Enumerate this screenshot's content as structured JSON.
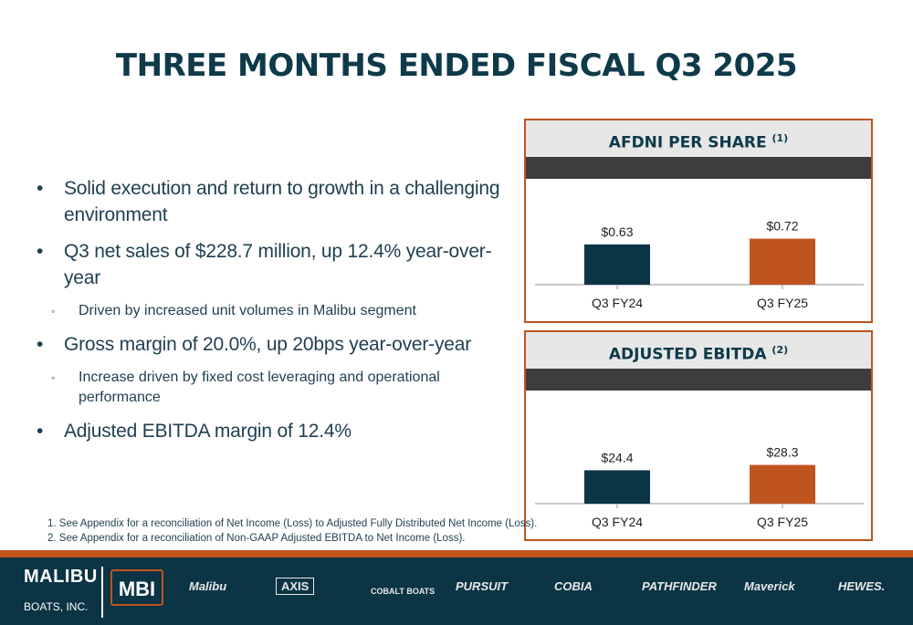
{
  "title": "THREE MONTHS ENDED FISCAL Q3 2025",
  "bullets": [
    {
      "level": 1,
      "text": "Solid execution and return to growth in a challenging environment"
    },
    {
      "level": 1,
      "text": "Q3 net sales of $228.7 million, up 12.4% year-over-year"
    },
    {
      "level": 2,
      "text": "Driven by increased unit volumes in Malibu segment"
    },
    {
      "level": 1,
      "text": "Gross margin of 20.0%, up 20bps year-over-year"
    },
    {
      "level": 2,
      "text": "Increase driven by fixed cost leveraging and operational performance"
    },
    {
      "level": 1,
      "text": "Adjusted EBITDA margin of 12.4%"
    }
  ],
  "footnotes": [
    "1.  See Appendix for a reconciliation of Net Income (Loss) to Adjusted Fully Distributed Net Income (Loss).",
    "2.  See Appendix for a reconciliation of Non-GAAP Adjusted EBITDA to Net Income (Loss)."
  ],
  "chart_data": [
    {
      "type": "bar",
      "title": "AFDNI PER SHARE",
      "title_note": "(1)",
      "categories": [
        "Q3 FY24",
        "Q3 FY25"
      ],
      "values": [
        0.63,
        0.72
      ],
      "labels": [
        "$0.63",
        "$0.72"
      ],
      "colors": [
        "#0b3444",
        "#c0541e"
      ],
      "ylim": [
        0,
        1.6
      ]
    },
    {
      "type": "bar",
      "title": "ADJUSTED EBITDA",
      "title_note": "(2)",
      "categories": [
        "Q3 FY24",
        "Q3 FY25"
      ],
      "values": [
        24.4,
        28.3
      ],
      "labels": [
        "$24.4",
        "$28.3"
      ],
      "colors": [
        "#0b3444",
        "#c0541e"
      ],
      "ylim": [
        0,
        80
      ]
    }
  ],
  "footer": {
    "company_line1": "MALIBU",
    "company_line2": "BOATS, INC.",
    "ticker_logo": "MBI",
    "brands": [
      "Malibu",
      "AXIS",
      "COBALT BOATS",
      "PURSUIT",
      "COBIA",
      "PATHFINDER",
      "Maverick",
      "HEWES."
    ]
  }
}
